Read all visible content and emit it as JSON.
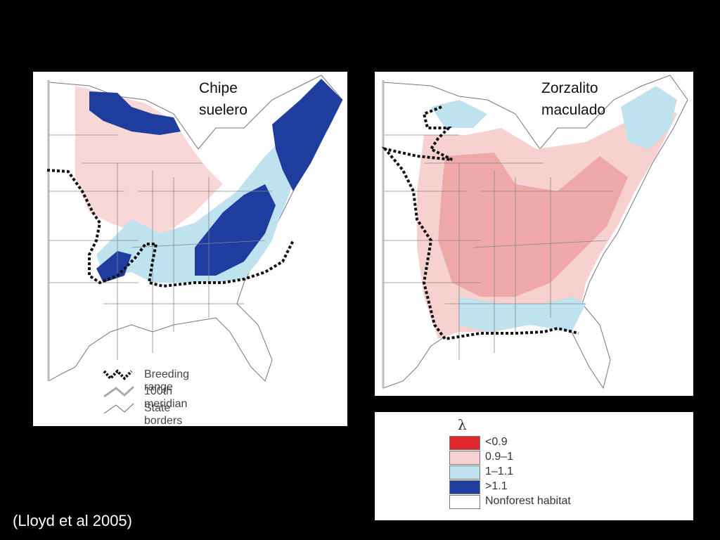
{
  "maps": {
    "left": {
      "title": "Chipe\nsuelero"
    },
    "right": {
      "title": "Zorzalito\nmaculado"
    }
  },
  "range_legend": {
    "breeding_range": "Breeding range",
    "meridian": "100th meridian",
    "state_borders": "State borders"
  },
  "lambda_legend": {
    "symbol": "λ",
    "items": [
      {
        "label": "<0.9",
        "color": "#e0282c"
      },
      {
        "label": "0.9–1",
        "color": "#f6d1cf"
      },
      {
        "label": "1–1.1",
        "color": "#bfe2ef"
      },
      {
        "label": ">1.1",
        "color": "#1f3d9e"
      },
      {
        "label": "Nonforest habitat",
        "color": "#ffffff"
      }
    ]
  },
  "citation": "(Lloyd et al 2005)"
}
